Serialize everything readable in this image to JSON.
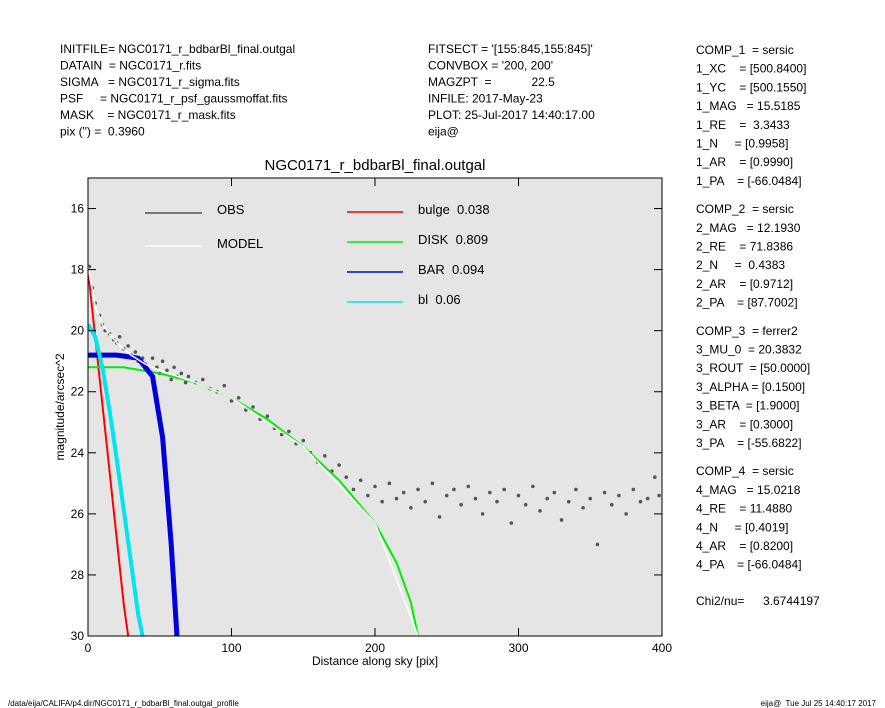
{
  "header": {
    "left": [
      "INITFILE= NGC0171_r_bdbarBl_final.outgal",
      "DATAIN  = NGC0171_r.fits",
      "SIGMA   = NGC0171_r_sigma.fits",
      "PSF     = NGC0171_r_psf_gaussmoffat.fits",
      "MASK    = NGC0171_r_mask.fits",
      "pix (\") =  0.3960"
    ],
    "middle": [
      "FITSECT = '[155:845,155:845]'",
      "CONVBOX = '200, 200'",
      "MAGZPT  =            22.5",
      "INFILE: 2017-May-23",
      "PLOT: 25-Jul-2017 14:40:17.00",
      "eija@"
    ]
  },
  "components": [
    {
      "title": "COMP_1  = sersic",
      "lines": [
        "1_XC    = [500.8400]",
        "1_YC    = [500.1550]",
        "1_MAG   = 15.5185",
        "1_RE    =  3.3433",
        "1_N     = [0.9958]",
        "1_AR    = [0.9990]",
        "1_PA    = [-66.0484]"
      ]
    },
    {
      "title": "COMP_2  = sersic",
      "lines": [
        "2_MAG   = 12.1930",
        "2_RE    = 71.8386",
        "2_N     =  0.4383",
        "2_AR    = [0.9712]",
        "2_PA    = [87.7002]"
      ]
    },
    {
      "title": "COMP_3  = ferrer2",
      "lines": [
        "3_MU_0  = 20.3832",
        "3_ROUT  = [50.0000]",
        "3_ALPHA = [0.1500]",
        "3_BETA  = [1.9000]",
        "3_AR    = [0.3000]",
        "3_PA    = [-55.6822]"
      ]
    },
    {
      "title": "COMP_4  = sersic",
      "lines": [
        "4_MAG   = 15.0218",
        "4_RE    = 11.4880",
        "4_N     = [0.4019]",
        "4_AR    = [0.8200]",
        "4_PA    = [-66.0484]"
      ]
    }
  ],
  "chi2": {
    "label": "Chi2/nu=",
    "value": "3.6744197"
  },
  "footer": {
    "left": "/data/eija/CALIFA/p4.dir/NGC0171_r_bdbarBl_final.outgal_profile",
    "right": "eija@  Tue Jul 25 14:40:17 2017"
  },
  "chart_data": {
    "type": "scatter",
    "title": "NGC0171_r_bdbarBl_final.outgal",
    "x_label": "Distance along sky [pix]",
    "y_label": "magnitude/arcsec^2",
    "xlim": [
      0,
      400
    ],
    "xticks": [
      0,
      100,
      200,
      300,
      400
    ],
    "ylim": [
      30,
      15
    ],
    "yticks": [
      16,
      18,
      20,
      22,
      24,
      26,
      28,
      30
    ],
    "background": "#e5e5e5",
    "points": {
      "name": "OBS",
      "color": "#555555",
      "x": [
        1,
        3,
        5,
        8,
        10,
        12,
        15,
        18,
        20,
        22,
        25,
        28,
        30,
        33,
        35,
        38,
        40,
        42,
        45,
        48,
        50,
        52,
        55,
        58,
        60,
        62,
        65,
        68,
        70,
        75,
        80,
        85,
        90,
        95,
        100,
        105,
        110,
        115,
        120,
        125,
        130,
        135,
        140,
        145,
        150,
        155,
        160,
        165,
        170,
        175,
        180,
        185,
        190,
        195,
        200,
        205,
        210,
        215,
        220,
        225,
        230,
        235,
        240,
        245,
        250,
        255,
        260,
        265,
        270,
        275,
        280,
        285,
        290,
        295,
        300,
        305,
        310,
        315,
        320,
        325,
        330,
        335,
        340,
        345,
        350,
        355,
        360,
        365,
        370,
        375,
        380,
        385,
        390,
        395,
        398
      ],
      "values": [
        17.9,
        18.6,
        19.1,
        19.5,
        19.8,
        20.0,
        20.1,
        20.3,
        20.4,
        20.2,
        20.6,
        20.5,
        20.8,
        20.7,
        21.0,
        20.9,
        21.1,
        21.3,
        20.9,
        21.2,
        21.4,
        21.0,
        21.3,
        21.6,
        21.2,
        21.5,
        21.4,
        21.7,
        21.5,
        21.7,
        21.6,
        21.9,
        22.0,
        21.8,
        22.3,
        22.2,
        22.6,
        22.5,
        22.9,
        22.8,
        23.2,
        23.4,
        23.3,
        23.7,
        23.6,
        24.0,
        24.3,
        24.1,
        24.6,
        24.4,
        24.8,
        25.2,
        24.9,
        25.4,
        25.1,
        25.6,
        25.0,
        25.5,
        25.3,
        25.8,
        25.2,
        25.6,
        25.0,
        26.1,
        25.4,
        25.2,
        25.7,
        25.1,
        25.5,
        26.0,
        25.3,
        25.6,
        25.2,
        26.3,
        25.4,
        25.7,
        25.1,
        25.9,
        25.5,
        25.3,
        26.2,
        25.6,
        25.2,
        25.8,
        25.5,
        27.0,
        25.3,
        25.7,
        25.4,
        26.0,
        25.2,
        25.6,
        25.5,
        24.8,
        25.4
      ]
    },
    "model": {
      "name": "MODEL",
      "color": "#ffffff",
      "x": [
        0,
        5,
        10,
        20,
        30,
        40,
        50,
        75,
        100,
        150,
        200,
        230
      ],
      "values": [
        17.9,
        19.2,
        19.8,
        20.4,
        20.8,
        21.1,
        21.3,
        21.7,
        22.2,
        23.8,
        26.3,
        30.0
      ]
    },
    "series": [
      {
        "name": "bulge",
        "fraction": 0.038,
        "color": "#ff0000",
        "x": [
          0,
          5,
          10,
          15,
          20,
          25,
          28
        ],
        "values": [
          18.0,
          20.2,
          22.4,
          24.6,
          26.8,
          29.0,
          30.0
        ]
      },
      {
        "name": "DISK",
        "fraction": 0.809,
        "color": "#00ee00",
        "x": [
          0,
          25,
          50,
          75,
          100,
          125,
          150,
          175,
          200,
          215,
          225,
          230
        ],
        "values": [
          21.2,
          21.2,
          21.4,
          21.7,
          22.2,
          22.9,
          23.8,
          24.9,
          26.3,
          27.6,
          28.9,
          30.0
        ]
      },
      {
        "name": "BAR",
        "fraction": 0.094,
        "color": "#0000dd",
        "x": [
          0,
          20,
          35,
          45,
          52,
          58,
          62
        ],
        "values": [
          20.8,
          20.8,
          20.9,
          21.5,
          23.5,
          27.0,
          30.0
        ]
      },
      {
        "name": "bl",
        "fraction": 0.06,
        "color": "#00e5ee",
        "x": [
          0,
          5,
          10,
          15,
          20,
          25,
          30,
          35,
          38
        ],
        "values": [
          19.8,
          20.2,
          21.2,
          22.6,
          24.2,
          25.9,
          27.6,
          29.3,
          30.0
        ]
      }
    ]
  }
}
